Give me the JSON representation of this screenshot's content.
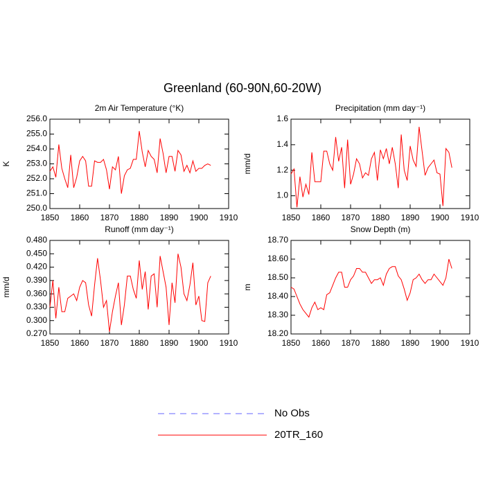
{
  "title": "Greenland (60-90N,60-20W)",
  "legend": [
    {
      "name": "No Obs",
      "color": "#6666ff",
      "style": "dashed"
    },
    {
      "name": "20TR_160",
      "color": "#ff0000",
      "style": "solid"
    }
  ],
  "chart_data": [
    {
      "type": "line",
      "title": "2m Air Temperature (°K)",
      "y_label": "K",
      "color": "#ff0000",
      "x": [
        1850,
        1851,
        1852,
        1853,
        1854,
        1855,
        1856,
        1857,
        1858,
        1859,
        1860,
        1861,
        1862,
        1863,
        1864,
        1865,
        1866,
        1867,
        1868,
        1869,
        1870,
        1871,
        1872,
        1873,
        1874,
        1875,
        1876,
        1877,
        1878,
        1879,
        1880,
        1881,
        1882,
        1883,
        1884,
        1885,
        1886,
        1887,
        1888,
        1889,
        1890,
        1891,
        1892,
        1893,
        1894,
        1895,
        1896,
        1897,
        1898,
        1899,
        1900,
        1901,
        1902,
        1903,
        1904
      ],
      "values": [
        252.5,
        252.8,
        252.1,
        254.3,
        252.7,
        252.0,
        251.4,
        253.6,
        251.4,
        252.1,
        253.2,
        253.5,
        253.2,
        251.5,
        251.5,
        253.2,
        253.1,
        253.1,
        253.3,
        252.6,
        251.3,
        252.8,
        252.6,
        253.5,
        251.0,
        252.2,
        252.6,
        252.7,
        253.3,
        253.3,
        255.2,
        253.8,
        252.8,
        253.9,
        253.5,
        253.3,
        252.4,
        254.7,
        253.7,
        252.4,
        253.5,
        253.5,
        252.5,
        253.9,
        253.6,
        252.5,
        252.9,
        252.4,
        253.2,
        252.5,
        252.7,
        252.7,
        252.9,
        253.0,
        252.9
      ],
      "xlim": [
        1850,
        1910
      ],
      "xticks": [
        1850,
        1860,
        1870,
        1880,
        1890,
        1900,
        1910
      ],
      "ylim": [
        250,
        256
      ],
      "yticks": [
        {
          "value": 250,
          "label": "250.0"
        },
        {
          "value": 251,
          "label": "251.0"
        },
        {
          "value": 252,
          "label": "252.0"
        },
        {
          "value": 253,
          "label": "253.0"
        },
        {
          "value": 254,
          "label": "254.0"
        },
        {
          "value": 255,
          "label": "255.0"
        },
        {
          "value": 256,
          "label": "256.0"
        }
      ]
    },
    {
      "type": "line",
      "title": "Precipitation (mm day⁻¹)",
      "y_label": "mm/d",
      "color": "#ff0000",
      "x": [
        1850,
        1851,
        1852,
        1853,
        1854,
        1855,
        1856,
        1857,
        1858,
        1859,
        1860,
        1861,
        1862,
        1863,
        1864,
        1865,
        1866,
        1867,
        1868,
        1869,
        1870,
        1871,
        1872,
        1873,
        1874,
        1875,
        1876,
        1877,
        1878,
        1879,
        1880,
        1881,
        1882,
        1883,
        1884,
        1885,
        1886,
        1887,
        1888,
        1889,
        1890,
        1891,
        1892,
        1893,
        1894,
        1895,
        1896,
        1897,
        1898,
        1899,
        1900,
        1901,
        1902,
        1903,
        1904
      ],
      "values": [
        1.17,
        1.21,
        0.91,
        1.15,
        0.99,
        1.09,
        1.01,
        1.34,
        1.11,
        1.11,
        1.11,
        1.35,
        1.35,
        1.25,
        1.2,
        1.46,
        1.27,
        1.38,
        1.06,
        1.44,
        1.09,
        1.17,
        1.29,
        1.25,
        1.14,
        1.18,
        1.16,
        1.29,
        1.34,
        1.12,
        1.36,
        1.29,
        1.37,
        1.25,
        1.38,
        1.25,
        1.06,
        1.48,
        1.2,
        1.12,
        1.39,
        1.28,
        1.23,
        1.54,
        1.35,
        1.16,
        1.22,
        1.25,
        1.28,
        1.18,
        1.17,
        0.92,
        1.37,
        1.34,
        1.22
      ],
      "xlim": [
        1850,
        1910
      ],
      "xticks": [
        1850,
        1860,
        1870,
        1880,
        1890,
        1900,
        1910
      ],
      "ylim": [
        0.9,
        1.6
      ],
      "yticks": [
        {
          "value": 1.0,
          "label": "1.0"
        },
        {
          "value": 1.2,
          "label": "1.2"
        },
        {
          "value": 1.4,
          "label": "1.4"
        },
        {
          "value": 1.6,
          "label": "1.6"
        }
      ]
    },
    {
      "type": "line",
      "title": "Runoff (mm day⁻¹)",
      "y_label": "mm/d",
      "color": "#ff0000",
      "x": [
        1850,
        1851,
        1852,
        1853,
        1854,
        1855,
        1856,
        1857,
        1858,
        1859,
        1860,
        1861,
        1862,
        1863,
        1864,
        1865,
        1866,
        1867,
        1868,
        1869,
        1870,
        1871,
        1872,
        1873,
        1874,
        1875,
        1876,
        1877,
        1878,
        1879,
        1880,
        1881,
        1882,
        1883,
        1884,
        1885,
        1886,
        1887,
        1888,
        1889,
        1890,
        1891,
        1892,
        1893,
        1894,
        1895,
        1896,
        1897,
        1898,
        1899,
        1900,
        1901,
        1902,
        1903,
        1904
      ],
      "values": [
        0.33,
        0.39,
        0.305,
        0.375,
        0.32,
        0.32,
        0.35,
        0.355,
        0.36,
        0.345,
        0.375,
        0.39,
        0.385,
        0.335,
        0.31,
        0.38,
        0.44,
        0.39,
        0.33,
        0.345,
        0.275,
        0.32,
        0.355,
        0.385,
        0.29,
        0.335,
        0.4,
        0.4,
        0.37,
        0.35,
        0.435,
        0.37,
        0.41,
        0.325,
        0.4,
        0.405,
        0.33,
        0.445,
        0.41,
        0.375,
        0.29,
        0.385,
        0.34,
        0.45,
        0.42,
        0.36,
        0.345,
        0.38,
        0.43,
        0.335,
        0.355,
        0.3,
        0.298,
        0.385,
        0.4
      ],
      "xlim": [
        1850,
        1910
      ],
      "xticks": [
        1850,
        1860,
        1870,
        1880,
        1890,
        1900,
        1910
      ],
      "ylim": [
        0.27,
        0.48
      ],
      "yticks": [
        {
          "value": 0.27,
          "label": "0.270"
        },
        {
          "value": 0.3,
          "label": "0.300"
        },
        {
          "value": 0.33,
          "label": "0.330"
        },
        {
          "value": 0.36,
          "label": "0.360"
        },
        {
          "value": 0.39,
          "label": "0.390"
        },
        {
          "value": 0.42,
          "label": "0.420"
        },
        {
          "value": 0.45,
          "label": "0.450"
        },
        {
          "value": 0.48,
          "label": "0.480"
        }
      ]
    },
    {
      "type": "line",
      "title": "Snow Depth (m)",
      "y_label": "m",
      "color": "#ff0000",
      "x": [
        1850,
        1851,
        1852,
        1853,
        1854,
        1855,
        1856,
        1857,
        1858,
        1859,
        1860,
        1861,
        1862,
        1863,
        1864,
        1865,
        1866,
        1867,
        1868,
        1869,
        1870,
        1871,
        1872,
        1873,
        1874,
        1875,
        1876,
        1877,
        1878,
        1879,
        1880,
        1881,
        1882,
        1883,
        1884,
        1885,
        1886,
        1887,
        1888,
        1889,
        1890,
        1891,
        1892,
        1893,
        1894,
        1895,
        1896,
        1897,
        1898,
        1899,
        1900,
        1901,
        1902,
        1903,
        1904
      ],
      "values": [
        18.45,
        18.44,
        18.4,
        18.36,
        18.33,
        18.31,
        18.29,
        18.34,
        18.37,
        18.33,
        18.34,
        18.33,
        18.41,
        18.42,
        18.46,
        18.5,
        18.53,
        18.53,
        18.45,
        18.45,
        18.49,
        18.51,
        18.55,
        18.55,
        18.53,
        18.53,
        18.5,
        18.47,
        18.49,
        18.49,
        18.5,
        18.46,
        18.52,
        18.55,
        18.56,
        18.56,
        18.51,
        18.49,
        18.44,
        18.38,
        18.42,
        18.49,
        18.5,
        18.52,
        18.49,
        18.47,
        18.49,
        18.49,
        18.52,
        18.5,
        18.48,
        18.46,
        18.5,
        18.6,
        18.55
      ],
      "xlim": [
        1850,
        1910
      ],
      "xticks": [
        1850,
        1860,
        1870,
        1880,
        1890,
        1900,
        1910
      ],
      "ylim": [
        18.2,
        18.7
      ],
      "yticks": [
        {
          "value": 18.2,
          "label": "18.20"
        },
        {
          "value": 18.3,
          "label": "18.30"
        },
        {
          "value": 18.4,
          "label": "18.40"
        },
        {
          "value": 18.5,
          "label": "18.50"
        },
        {
          "value": 18.6,
          "label": "18.60"
        },
        {
          "value": 18.7,
          "label": "18.70"
        }
      ]
    }
  ]
}
